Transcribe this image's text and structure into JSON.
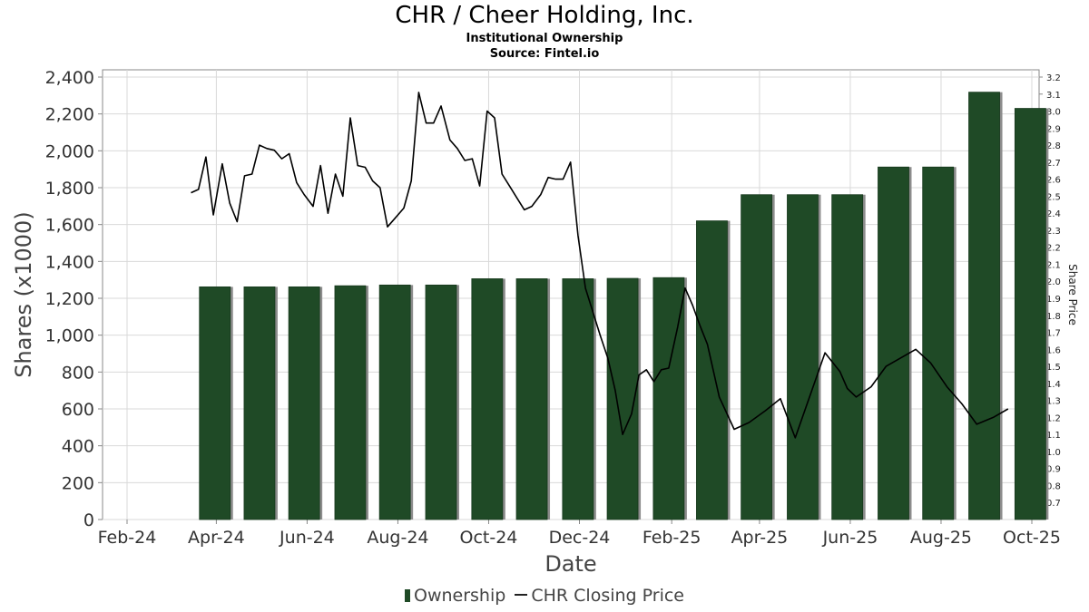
{
  "title": "CHR / Cheer Holding, Inc.",
  "subtitle": "Institutional Ownership",
  "source": "Source: Fintel.io",
  "legend": {
    "ownership": "Ownership",
    "price": "CHR Closing Price"
  },
  "colors": {
    "bar": "#1f4a26",
    "bar_shadow": "#8c8c8c",
    "line": "#000000",
    "grid": "#d9d9d9"
  },
  "chart_data": {
    "type": "bar",
    "xlabel": "Date",
    "ylabel": "Shares (x1000)",
    "y2label": "Share Price",
    "ylim": [
      0,
      2400
    ],
    "y2lim": [
      0.6,
      3.2
    ],
    "x_ticks": [
      "Feb-24",
      "Apr-24",
      "Jun-24",
      "Aug-24",
      "Oct-24",
      "Dec-24",
      "Feb-25",
      "Apr-25",
      "Jun-25",
      "Aug-25",
      "Oct-25"
    ],
    "y_ticks": [
      "0",
      "200",
      "400",
      "600",
      "800",
      "1,000",
      "1,200",
      "1,400",
      "1,600",
      "1,800",
      "2,000",
      "2,200",
      "2,400"
    ],
    "y2_ticks": [
      "0.7",
      "0.8",
      "0.9",
      "1.0",
      "1.1",
      "1.2",
      "1.3",
      "1.4",
      "1.5",
      "1.6",
      "1.7",
      "1.8",
      "1.9",
      "2.0",
      "2.1",
      "2.2",
      "2.3",
      "2.4",
      "2.5",
      "2.6",
      "2.7",
      "2.8",
      "2.9",
      "3.0",
      "3.1",
      "3.2"
    ],
    "grid": true,
    "series": [
      {
        "name": "Ownership",
        "type": "bar",
        "x": [
          "2024-03-31",
          "2024-04-30",
          "2024-05-30",
          "2024-06-30",
          "2024-07-30",
          "2024-08-30",
          "2024-09-30",
          "2024-10-30",
          "2024-11-30",
          "2024-12-30",
          "2025-01-30",
          "2025-02-28",
          "2025-03-30",
          "2025-04-30",
          "2025-05-30",
          "2025-06-30",
          "2025-07-30",
          "2025-08-30",
          "2025-09-30"
        ],
        "values": [
          1262,
          1262,
          1262,
          1268,
          1272,
          1272,
          1306,
          1306,
          1306,
          1308,
          1312,
          1620,
          1762,
          1762,
          1762,
          1912,
          1912,
          2318,
          2230
        ]
      },
      {
        "name": "CHR Closing Price",
        "type": "line",
        "x": [
          "2024-03-15",
          "2024-03-20",
          "2024-03-25",
          "2024-03-30",
          "2024-04-05",
          "2024-04-10",
          "2024-04-15",
          "2024-04-20",
          "2024-04-25",
          "2024-04-30",
          "2024-05-05",
          "2024-05-10",
          "2024-05-15",
          "2024-05-20",
          "2024-05-25",
          "2024-05-30",
          "2024-06-05",
          "2024-06-10",
          "2024-06-15",
          "2024-06-20",
          "2024-06-25",
          "2024-06-30",
          "2024-07-05",
          "2024-07-10",
          "2024-07-15",
          "2024-07-20",
          "2024-07-25",
          "2024-07-30",
          "2024-08-05",
          "2024-08-10",
          "2024-08-15",
          "2024-08-20",
          "2024-08-25",
          "2024-08-30",
          "2024-09-05",
          "2024-09-10",
          "2024-09-15",
          "2024-09-20",
          "2024-09-25",
          "2024-09-30",
          "2024-10-05",
          "2024-10-10",
          "2024-10-15",
          "2024-10-20",
          "2024-10-25",
          "2024-10-30",
          "2024-11-05",
          "2024-11-10",
          "2024-11-15",
          "2024-11-20",
          "2024-11-25",
          "2024-11-30",
          "2024-12-05",
          "2024-12-10",
          "2024-12-15",
          "2024-12-20",
          "2024-12-25",
          "2024-12-30",
          "2025-01-05",
          "2025-01-10",
          "2025-01-15",
          "2025-01-20",
          "2025-01-25",
          "2025-01-30",
          "2025-02-05",
          "2025-02-10",
          "2025-02-15",
          "2025-02-20",
          "2025-02-25",
          "2025-03-05",
          "2025-03-15",
          "2025-03-25",
          "2025-04-05",
          "2025-04-15",
          "2025-04-25",
          "2025-05-05",
          "2025-05-15",
          "2025-05-25",
          "2025-05-30",
          "2025-06-05",
          "2025-06-15",
          "2025-06-25",
          "2025-07-05",
          "2025-07-15",
          "2025-07-25",
          "2025-08-05",
          "2025-08-15",
          "2025-08-25",
          "2025-09-05",
          "2025-09-15"
        ],
        "values": [
          2.52,
          2.54,
          2.73,
          2.39,
          2.69,
          2.46,
          2.35,
          2.62,
          2.63,
          2.8,
          2.78,
          2.77,
          2.72,
          2.75,
          2.58,
          2.51,
          2.44,
          2.68,
          2.4,
          2.63,
          2.5,
          2.96,
          2.68,
          2.67,
          2.59,
          2.55,
          2.32,
          2.37,
          2.43,
          2.59,
          3.11,
          2.93,
          2.93,
          3.03,
          2.83,
          2.78,
          2.71,
          2.72,
          2.56,
          3.0,
          2.96,
          2.63,
          2.56,
          2.49,
          2.42,
          2.44,
          2.51,
          2.61,
          2.6,
          2.6,
          2.7,
          2.27,
          1.96,
          1.82,
          1.68,
          1.55,
          1.36,
          1.1,
          1.22,
          1.45,
          1.48,
          1.41,
          1.48,
          1.49,
          1.73,
          1.96,
          1.86,
          1.74,
          1.63,
          1.32,
          1.13,
          1.17,
          1.24,
          1.31,
          1.08,
          1.33,
          1.58,
          1.47,
          1.37,
          1.32,
          1.38,
          1.5,
          1.55,
          1.6,
          1.52,
          1.38,
          1.28,
          1.16,
          1.2,
          1.25
        ]
      }
    ]
  }
}
